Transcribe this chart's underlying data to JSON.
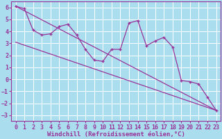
{
  "xlabel": "Windchill (Refroidissement éolien,°C)",
  "bg_color": "#aaddee",
  "grid_color": "#ffffff",
  "line_color": "#993399",
  "xlim": [
    -0.5,
    23.5
  ],
  "ylim": [
    -3.5,
    6.5
  ],
  "xticks": [
    0,
    1,
    2,
    3,
    4,
    5,
    6,
    7,
    8,
    9,
    10,
    11,
    12,
    13,
    14,
    15,
    16,
    17,
    18,
    19,
    20,
    21,
    22,
    23
  ],
  "yticks": [
    -3,
    -2,
    -1,
    0,
    1,
    2,
    3,
    4,
    5,
    6
  ],
  "data_x": [
    0,
    1,
    2,
    3,
    4,
    5,
    6,
    7,
    8,
    9,
    10,
    11,
    12,
    13,
    14,
    15,
    16,
    17,
    18,
    19,
    20,
    21,
    22,
    23
  ],
  "data_y": [
    6.1,
    5.9,
    4.1,
    3.7,
    3.8,
    4.4,
    4.6,
    3.7,
    2.5,
    1.6,
    1.5,
    2.5,
    2.5,
    4.7,
    4.9,
    2.8,
    3.2,
    3.5,
    2.7,
    -0.1,
    -0.2,
    -0.4,
    -1.5,
    -2.6
  ],
  "trend1_x": [
    0,
    23
  ],
  "trend1_y": [
    6.1,
    -2.6
  ],
  "trend2_x": [
    0,
    23
  ],
  "trend2_y": [
    3.1,
    -2.6
  ],
  "tick_fontsize": 6.0,
  "xlabel_fontsize": 6.5
}
